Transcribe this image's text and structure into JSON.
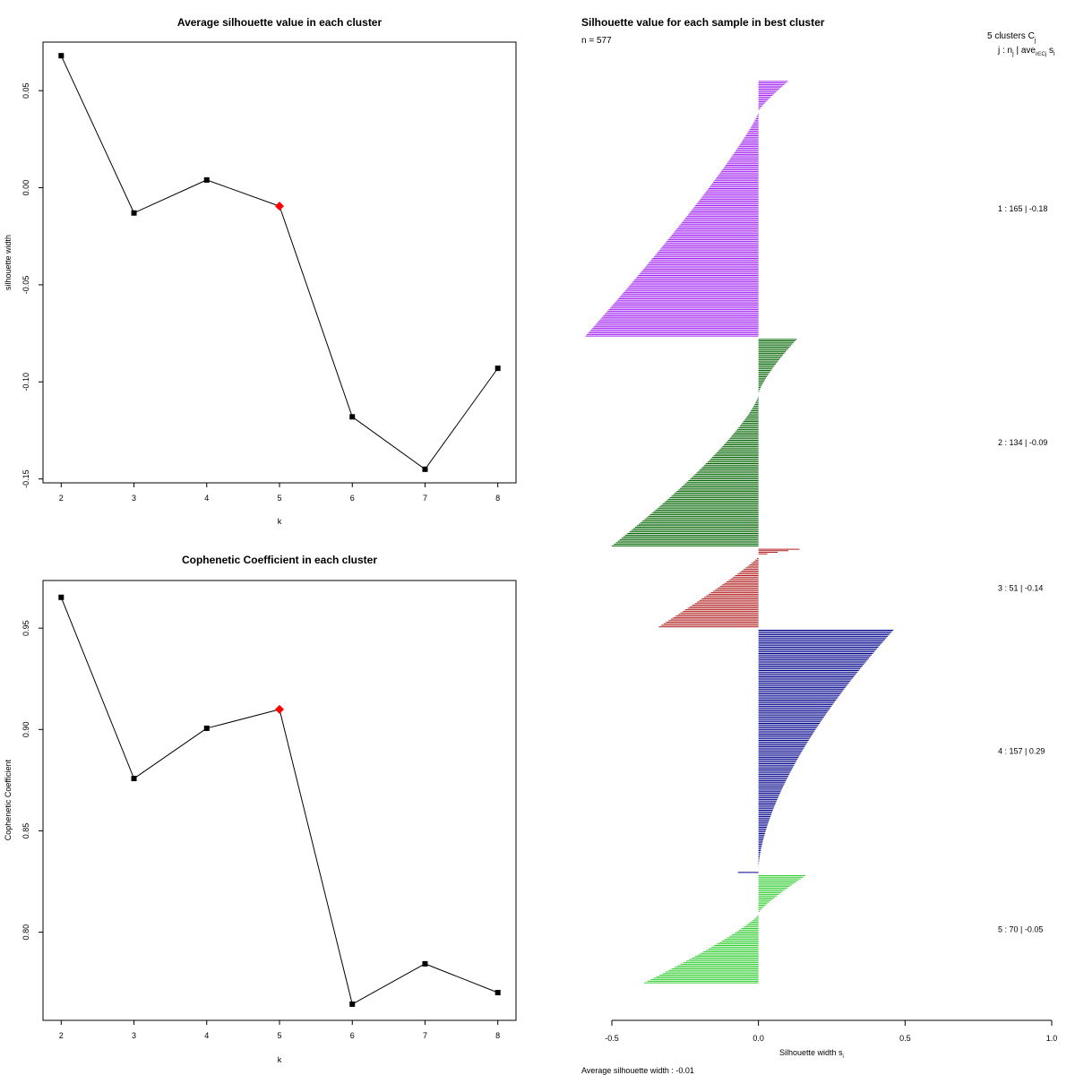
{
  "chart_data": [
    {
      "type": "line",
      "title": "Average silhouette value in each cluster",
      "xlabel": "k",
      "ylabel": "silhouette width",
      "x": [
        2,
        3,
        4,
        5,
        6,
        7,
        8
      ],
      "values": [
        0.068,
        -0.013,
        0.004,
        -0.0095,
        -0.118,
        -0.145,
        -0.093
      ],
      "highlight_k": 5,
      "xlim": [
        1.75,
        8.25
      ],
      "ylim": [
        -0.152,
        0.075
      ],
      "x_ticks": [
        2,
        3,
        4,
        5,
        6,
        7,
        8
      ],
      "y_ticks": [
        -0.15,
        -0.1,
        -0.05,
        0.0,
        0.05
      ],
      "y_tick_labels": [
        "-0.15",
        "-0.10",
        "-0.05",
        "0.00",
        "0.05"
      ],
      "point_color": "#000000",
      "highlight_color": "#ff0000"
    },
    {
      "type": "line",
      "title": "Cophenetic Coefficient in each cluster",
      "xlabel": "k",
      "ylabel": "Cophenetic Coefficient",
      "x": [
        2,
        3,
        4,
        5,
        6,
        7,
        8
      ],
      "values": [
        0.9652,
        0.8758,
        0.9006,
        0.9099,
        0.7645,
        0.7844,
        0.7702
      ],
      "highlight_k": 5,
      "xlim": [
        1.75,
        8.25
      ],
      "ylim": [
        0.7565,
        0.9735
      ],
      "x_ticks": [
        2,
        3,
        4,
        5,
        6,
        7,
        8
      ],
      "y_ticks": [
        0.8,
        0.85,
        0.9,
        0.95
      ],
      "y_tick_labels": [
        "0.80",
        "0.85",
        "0.90",
        "0.95"
      ],
      "point_color": "#000000",
      "highlight_color": "#ff0000"
    },
    {
      "type": "bar",
      "orientation": "horizontal",
      "title": "Silhouette value for each sample in best cluster",
      "n_label": "n = 577",
      "xlabel": "Silhouette width s",
      "xlabel_sub": "i",
      "xlim": [
        -0.5,
        1.0
      ],
      "x_ticks": [
        -0.5,
        0.0,
        0.5,
        1.0
      ],
      "x_tick_labels": [
        "-0.5",
        "0.0",
        "0.5",
        "1.0"
      ],
      "legend_header_1": "5  clusters  C",
      "legend_header_1_sub": "j",
      "legend_header_2": "j :  n",
      "legend_header_2_sub": "j",
      "legend_header_2_rest": " | ave",
      "legend_header_2_sub2": "i∈Cj",
      "legend_header_2_end": " s",
      "legend_header_2_sub3": "i",
      "footer": "Average silhouette width :  -0.01",
      "clusters": [
        {
          "id": 1,
          "n": 165,
          "label": "1 :   165  |  -0.18",
          "color": "#a020f0",
          "max": 0.1,
          "min": -0.59,
          "shape": 1.15,
          "pos_frac": 0.12
        },
        {
          "id": 2,
          "n": 134,
          "label": "2 :   134  |  -0.09",
          "color": "#006400",
          "max": 0.13,
          "min": -0.5,
          "shape": 1.3,
          "pos_frac": 0.27
        },
        {
          "id": 3,
          "n": 51,
          "label": "3 :   51  |  -0.14",
          "color": "#b22222",
          "max": 0.14,
          "min": -0.34,
          "shape": 1.1,
          "pos_frac": 0.1
        },
        {
          "id": 4,
          "n": 157,
          "label": "4 :   157  |  0.29",
          "color": "#00008b",
          "max": 0.46,
          "min": -0.07,
          "shape": 1.6,
          "pos_frac": 0.99
        },
        {
          "id": 5,
          "n": 70,
          "label": "5 :   70  |  -0.05",
          "color": "#32cd32",
          "max": 0.16,
          "min": -0.39,
          "shape": 1.2,
          "pos_frac": 0.36
        }
      ]
    }
  ]
}
